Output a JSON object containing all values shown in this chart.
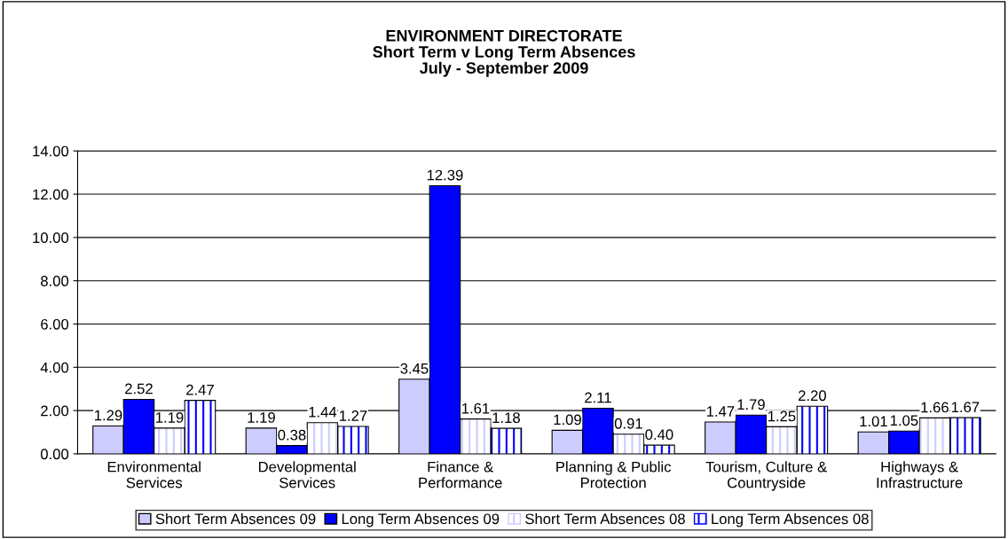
{
  "chart_data": {
    "type": "bar",
    "title": "ENVIRONMENT DIRECTORATE\nShort Term v Long Term Absences\nJuly - September 2009",
    "categories": [
      "Environmental\nServices",
      "Developmental\nServices",
      "Finance &\nPerformance",
      "Planning & Public\nProtection",
      "Tourism, Culture &\nCountryside",
      "Highways &\nInfrastructure"
    ],
    "series": [
      {
        "name": "Short Term Absences 09",
        "color": "#ccccff",
        "values": [
          1.29,
          1.19,
          3.45,
          1.09,
          1.47,
          1.01
        ],
        "value_labels": [
          "1.29",
          "1.19",
          "3.45",
          "1.09",
          "1.47",
          "1.01"
        ]
      },
      {
        "name": "Long Term Absences 09",
        "color": "#0000ff",
        "values": [
          2.52,
          0.38,
          12.39,
          2.11,
          1.79,
          1.05
        ],
        "value_labels": [
          "2.52",
          "0.38",
          "12.39",
          "2.11",
          "1.79",
          "1.05"
        ]
      },
      {
        "name": "Short Term Absences 08",
        "color": "#ccccff",
        "values": [
          1.19,
          1.44,
          1.61,
          0.91,
          1.25,
          1.66
        ],
        "value_labels": [
          "1.19",
          "1.44",
          "1.61",
          "0.91",
          "1.25",
          "1.66"
        ]
      },
      {
        "name": "Long Term Absences 08",
        "color": "#0000ff",
        "values": [
          2.47,
          1.27,
          1.18,
          0.4,
          2.2,
          1.67
        ],
        "value_labels": [
          "2.47",
          "1.27",
          "1.18",
          "0.40",
          "2.20",
          "1.67"
        ]
      }
    ],
    "ylim": [
      0,
      14
    ],
    "yticks": [
      {
        "value": 0,
        "label": "0.00"
      },
      {
        "value": 2,
        "label": "2.00"
      },
      {
        "value": 4,
        "label": "4.00"
      },
      {
        "value": 6,
        "label": "6.00"
      },
      {
        "value": 8,
        "label": "8.00"
      },
      {
        "value": 10,
        "label": "10.00"
      },
      {
        "value": 12,
        "label": "12.00"
      },
      {
        "value": 14,
        "label": "14.00"
      }
    ],
    "grid": "y",
    "legend": "bottom"
  }
}
